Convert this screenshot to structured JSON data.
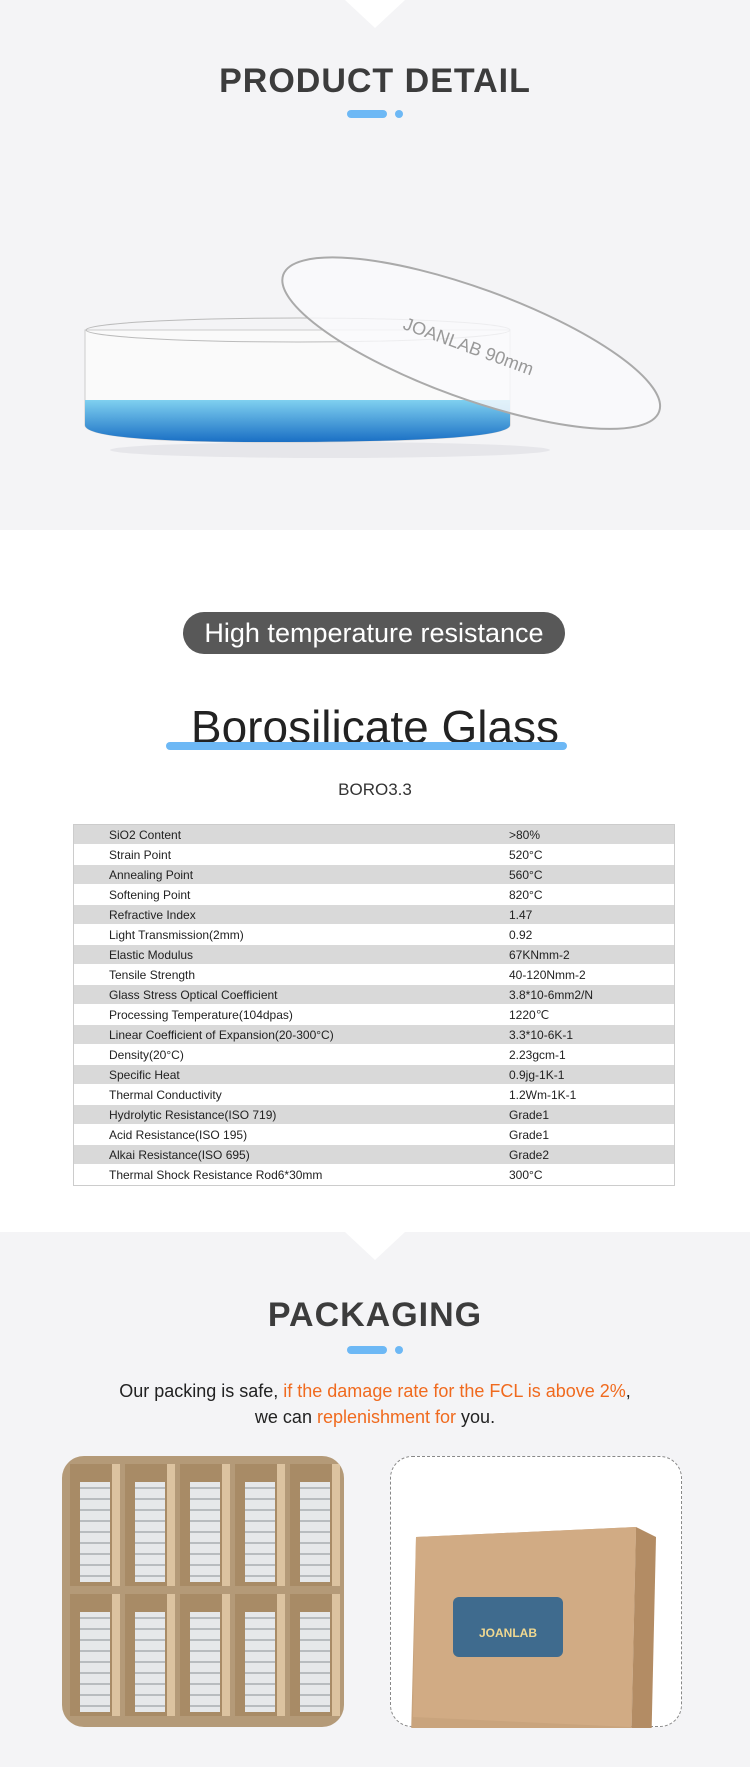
{
  "product_detail": {
    "title": "PRODUCT  DETAIL",
    "image_label": "JOANLAB 90mm"
  },
  "glass": {
    "badge": "High temperature resistance",
    "heading": "Borosilicate Glass",
    "subheading": "BORO3.3",
    "specs": [
      [
        "SiO2 Content",
        ">80%"
      ],
      [
        "Strain Point",
        "520°C"
      ],
      [
        "Annealing Point",
        "560°C"
      ],
      [
        "Softening Point",
        "820°C"
      ],
      [
        "Refractive Index",
        "1.47"
      ],
      [
        "Light Transmission(2mm)",
        "0.92"
      ],
      [
        "Elastic Modulus",
        "67KNmm-2"
      ],
      [
        "Tensile Strength",
        "40-120Nmm-2"
      ],
      [
        "Glass Stress Optical Coefficient",
        "3.8*10-6mm2/N"
      ],
      [
        "Processing Temperature(104dpas)",
        "1220℃"
      ],
      [
        "Linear Coefficient of Expansion(20-300°C)",
        "3.3*10-6K-1"
      ],
      [
        "Density(20°C)",
        "2.23gcm-1"
      ],
      [
        "Specific Heat",
        "0.9jg-1K-1"
      ],
      [
        "Thermal Conductivity",
        "1.2Wm-1K-1"
      ],
      [
        "Hydrolytic Resistance(ISO 719)",
        "Grade1"
      ],
      [
        "Acid Resistance(ISO 195)",
        "Grade1"
      ],
      [
        "Alkai Resistance(ISO 695)",
        "Grade2"
      ],
      [
        "Thermal Shock Resistance Rod6*30mm",
        "300°C"
      ]
    ]
  },
  "packaging": {
    "title": "PACKAGING",
    "line1_a": "Our packing is safe, ",
    "line1_b": "if the damage rate for the FCL is above 2%",
    "line1_c": ",",
    "line2_a": "we can ",
    "line2_b": "replenishment for",
    "line2_c": " you.",
    "box_logo": "JOANLAB"
  },
  "colors": {
    "accent": "#6db8f5",
    "highlight": "#f06a1e",
    "badge": "#585858"
  }
}
